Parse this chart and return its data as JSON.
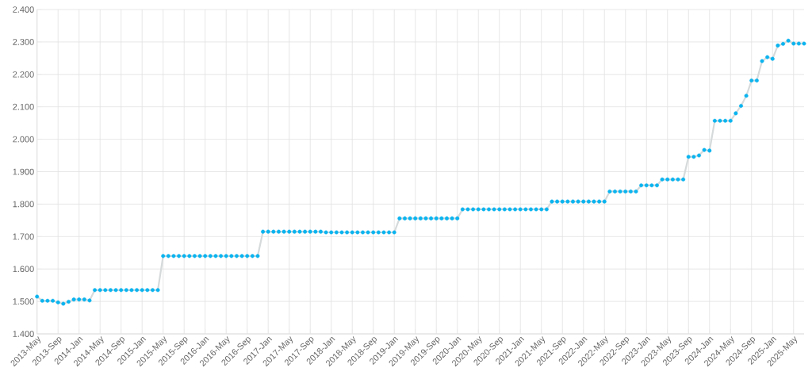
{
  "chart_data": {
    "type": "line",
    "marker": "circle",
    "grid": true,
    "categories": [
      "2013-May",
      null,
      null,
      null,
      "2013-Sep",
      null,
      null,
      null,
      "2014-Jan",
      null,
      null,
      null,
      "2014-May",
      null,
      null,
      null,
      "2014-Sep",
      null,
      null,
      null,
      "2015-Jan",
      null,
      null,
      null,
      "2015-May",
      null,
      null,
      null,
      "2015-Sep",
      null,
      null,
      null,
      "2016-Jan",
      null,
      null,
      null,
      "2016-May",
      null,
      null,
      null,
      "2016-Sep",
      null,
      null,
      null,
      "2017-Jan",
      null,
      null,
      null,
      "2017-May",
      null,
      null,
      null,
      "2017-Sep",
      null,
      null,
      null,
      "2018-Jan",
      null,
      null,
      null,
      "2018-May",
      null,
      null,
      null,
      "2018-Sep",
      null,
      null,
      null,
      "2019-Jan",
      null,
      null,
      null,
      "2019-May",
      null,
      null,
      null,
      "2019-Sep",
      null,
      null,
      null,
      "2020-Jan",
      null,
      null,
      null,
      "2020-May",
      null,
      null,
      null,
      "2020-Sep",
      null,
      null,
      null,
      "2021-Jan",
      null,
      null,
      null,
      "2021-May",
      null,
      null,
      null,
      "2021-Sep",
      null,
      null,
      null,
      "2022-Jan",
      null,
      null,
      null,
      "2022-May",
      null,
      null,
      null,
      "2022-Sep",
      null,
      null,
      null,
      "2023-Jan",
      null,
      null,
      null,
      "2023-May",
      null,
      null,
      null,
      "2023-Sep",
      null,
      null,
      null,
      "2024-Jan",
      null,
      null,
      null,
      "2024-May",
      null,
      null,
      null,
      "2024-Sep",
      null,
      null,
      null,
      "2025-Jan",
      null,
      null,
      null,
      "2025-May",
      null,
      null
    ],
    "series": [
      {
        "color": "#0bb4ef",
        "values": [
          1.515,
          1.502,
          1.502,
          1.502,
          1.497,
          1.493,
          1.499,
          1.506,
          1.506,
          1.506,
          1.503,
          1.535,
          1.535,
          1.535,
          1.535,
          1.535,
          1.535,
          1.535,
          1.535,
          1.535,
          1.535,
          1.535,
          1.535,
          1.535,
          1.64,
          1.64,
          1.64,
          1.64,
          1.64,
          1.64,
          1.64,
          1.64,
          1.64,
          1.64,
          1.64,
          1.64,
          1.64,
          1.64,
          1.64,
          1.64,
          1.64,
          1.64,
          1.64,
          1.715,
          1.715,
          1.715,
          1.715,
          1.715,
          1.715,
          1.715,
          1.715,
          1.715,
          1.715,
          1.715,
          1.715,
          1.713,
          1.713,
          1.713,
          1.713,
          1.713,
          1.713,
          1.713,
          1.713,
          1.713,
          1.713,
          1.713,
          1.713,
          1.713,
          1.713,
          1.756,
          1.756,
          1.756,
          1.756,
          1.756,
          1.756,
          1.756,
          1.756,
          1.756,
          1.756,
          1.756,
          1.756,
          1.784,
          1.784,
          1.784,
          1.784,
          1.784,
          1.784,
          1.784,
          1.784,
          1.784,
          1.784,
          1.784,
          1.784,
          1.784,
          1.784,
          1.784,
          1.784,
          1.784,
          1.808,
          1.808,
          1.808,
          1.808,
          1.808,
          1.808,
          1.808,
          1.808,
          1.808,
          1.808,
          1.808,
          1.839,
          1.839,
          1.839,
          1.839,
          1.839,
          1.839,
          1.858,
          1.858,
          1.858,
          1.858,
          1.876,
          1.876,
          1.876,
          1.876,
          1.876,
          1.946,
          1.946,
          1.95,
          1.967,
          1.965,
          2.057,
          2.057,
          2.057,
          2.057,
          2.08,
          2.103,
          2.134,
          2.181,
          2.181,
          2.241,
          2.253,
          2.248,
          2.289,
          2.294,
          2.304,
          2.295,
          2.295,
          2.295
        ]
      }
    ],
    "ylim": [
      1.4,
      2.4
    ],
    "yticks": [
      {
        "value": 1.4,
        "label": "1.400"
      },
      {
        "value": 1.5,
        "label": "1.500"
      },
      {
        "value": 1.6,
        "label": "1.600"
      },
      {
        "value": 1.7,
        "label": "1.700"
      },
      {
        "value": 1.8,
        "label": "1.800"
      },
      {
        "value": 1.9,
        "label": "1.900"
      },
      {
        "value": 2.0,
        "label": "2.000"
      },
      {
        "value": 2.1,
        "label": "2.100"
      },
      {
        "value": 2.2,
        "label": "2.200"
      },
      {
        "value": 2.3,
        "label": "2.300"
      },
      {
        "value": 2.4,
        "label": "2.400"
      }
    ]
  }
}
